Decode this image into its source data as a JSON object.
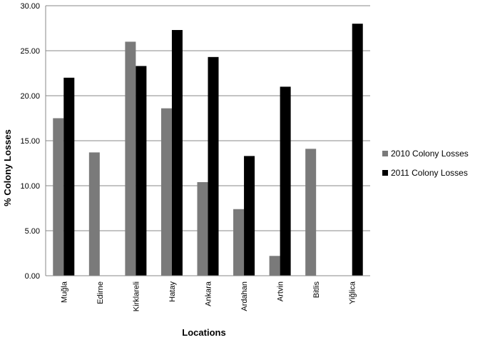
{
  "chart_data": {
    "type": "bar",
    "categories": [
      "Muğla",
      "Edirne",
      "Kirklareli",
      "Hatay",
      "Ankara",
      "Ardahan",
      "Artvin",
      "Bitlis",
      "Yiğlica"
    ],
    "series": [
      {
        "name": "2010 Colony Losses",
        "color": "#7a7a7a",
        "values": [
          17.5,
          13.7,
          26.0,
          18.6,
          10.4,
          7.4,
          2.2,
          14.1,
          null
        ]
      },
      {
        "name": "2011 Colony Losses",
        "color": "#000000",
        "values": [
          22.0,
          null,
          23.3,
          27.3,
          24.3,
          13.3,
          21.0,
          null,
          28.0
        ]
      }
    ],
    "title": "",
    "xlabel": "Locations",
    "ylabel": "% Colony  Losses",
    "ylim": [
      0,
      30
    ],
    "yticks": [
      "0.00",
      "5.00",
      "10.00",
      "15.00",
      "20.00",
      "25.00",
      "30.00"
    ],
    "grid": true,
    "legend_position": "right"
  }
}
